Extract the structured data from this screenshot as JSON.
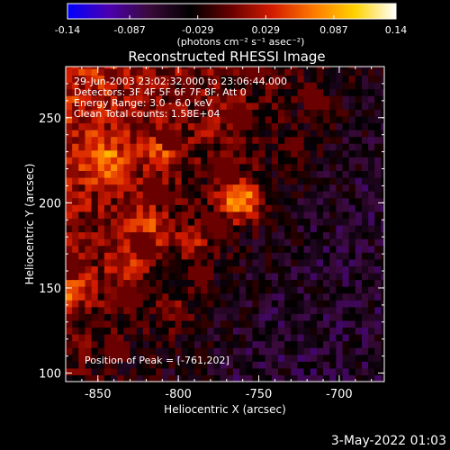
{
  "chart_data": {
    "type": "heatmap",
    "title": "Reconstructed RHESSI Image",
    "xlabel": "Heliocentric X (arcsec)",
    "ylabel": "Heliocentric Y (arcsec)",
    "xlim": [
      -870,
      -672
    ],
    "ylim": [
      95,
      280
    ],
    "x_ticks": [
      -850,
      -800,
      -750,
      -700
    ],
    "x_tick_labels": [
      "-850",
      "-800",
      "-750",
      "-700"
    ],
    "y_ticks": [
      100,
      150,
      200,
      250
    ],
    "y_tick_labels": [
      "100",
      "150",
      "200",
      "250"
    ],
    "colorbar": {
      "min": -0.14,
      "max": 0.14,
      "ticks": [
        -0.14,
        -0.087,
        -0.029,
        0.029,
        0.087,
        0.14
      ],
      "tick_labels": [
        "-0.14",
        "-0.087",
        "-0.029",
        "0.029",
        "0.087",
        "0.14"
      ],
      "unit_label": "(photons cm⁻² s⁻¹ asec⁻²)",
      "stops": [
        "#0000ff",
        "#4b00b0",
        "#3a0a3a",
        "#000000",
        "#6a0000",
        "#d41c00",
        "#ff7a00",
        "#ffd200",
        "#ffffff"
      ]
    },
    "info_lines": [
      "29-Jun-2003 23:02:32.000 to 23:06:44.000",
      "Detectors: 3F 4F 5F 6F 7F 8F, Att 0",
      "Energy Range: 3.0 - 6.0 keV",
      "Clean     Total counts: 1.58E+04"
    ],
    "peak_label": "Position of Peak = [-761,202]",
    "peak": [
      -761,
      202
    ],
    "sources": [
      {
        "x": -761,
        "y": 202,
        "value": 0.14
      },
      {
        "x": -845,
        "y": 225,
        "value": 0.095
      },
      {
        "x": -820,
        "y": 185,
        "value": 0.09
      },
      {
        "x": -868,
        "y": 150,
        "value": 0.1
      },
      {
        "x": -810,
        "y": 230,
        "value": 0.08
      },
      {
        "x": -832,
        "y": 162,
        "value": 0.085
      },
      {
        "x": -790,
        "y": 175,
        "value": 0.075
      },
      {
        "x": -800,
        "y": 135,
        "value": 0.06
      },
      {
        "x": -775,
        "y": 245,
        "value": 0.05
      }
    ],
    "background_level": -0.055,
    "color_scale": "linear"
  },
  "footer": {
    "date": "3-May-2022 01:03"
  }
}
